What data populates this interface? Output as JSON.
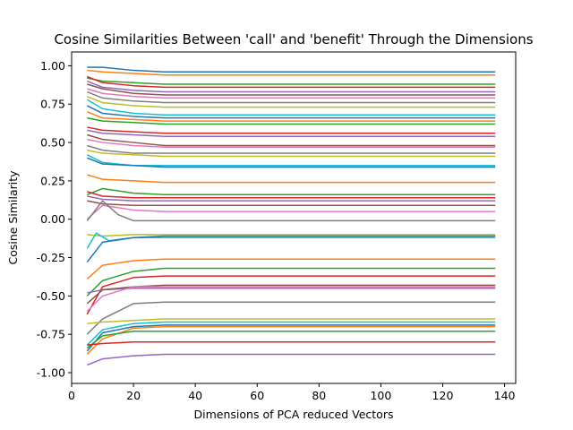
{
  "chart_data": {
    "type": "line",
    "title": "Cosine Similarities Between 'call' and 'benefit' Through the Dimensions",
    "xlabel": "Dimensions of PCA reduced Vectors",
    "ylabel": "Cosine Similarity",
    "xlim": [
      0,
      143.6
    ],
    "ylim": [
      -1.07,
      1.09
    ],
    "xticks": [
      0,
      20,
      40,
      60,
      80,
      100,
      120,
      140
    ],
    "yticks": [
      -1.0,
      -0.75,
      -0.5,
      -0.25,
      0.0,
      0.25,
      0.5,
      0.75,
      1.0
    ],
    "ytick_labels": [
      "-1.00",
      "-0.75",
      "-0.50",
      "-0.25",
      "0.00",
      "0.25",
      "0.50",
      "0.75",
      "1.00"
    ],
    "grid": false,
    "x_start": 5,
    "x_end": 137,
    "palette": [
      "#1f77b4",
      "#ff7f0e",
      "#2ca02c",
      "#d62728",
      "#9467bd",
      "#8c564b",
      "#e377c2",
      "#7f7f7f",
      "#bcbd22",
      "#17becf"
    ],
    "series": [
      {
        "values": [
          [
            5,
            0.99
          ],
          [
            10,
            0.99
          ],
          [
            20,
            0.97
          ],
          [
            30,
            0.96
          ],
          [
            137,
            0.96
          ]
        ]
      },
      {
        "values": [
          [
            5,
            0.97
          ],
          [
            10,
            0.96
          ],
          [
            20,
            0.95
          ],
          [
            30,
            0.94
          ],
          [
            137,
            0.94
          ]
        ]
      },
      {
        "values": [
          [
            5,
            0.92
          ],
          [
            10,
            0.9
          ],
          [
            20,
            0.89
          ],
          [
            30,
            0.88
          ],
          [
            137,
            0.88
          ]
        ]
      },
      {
        "values": [
          [
            5,
            0.93
          ],
          [
            10,
            0.89
          ],
          [
            20,
            0.87
          ],
          [
            30,
            0.86
          ],
          [
            137,
            0.86
          ]
        ]
      },
      {
        "values": [
          [
            5,
            0.9
          ],
          [
            10,
            0.86
          ],
          [
            20,
            0.84
          ],
          [
            30,
            0.83
          ],
          [
            137,
            0.83
          ]
        ]
      },
      {
        "values": [
          [
            5,
            0.88
          ],
          [
            10,
            0.85
          ],
          [
            20,
            0.82
          ],
          [
            30,
            0.81
          ],
          [
            137,
            0.81
          ]
        ]
      },
      {
        "values": [
          [
            5,
            0.85
          ],
          [
            10,
            0.82
          ],
          [
            20,
            0.8
          ],
          [
            30,
            0.79
          ],
          [
            137,
            0.79
          ]
        ]
      },
      {
        "values": [
          [
            5,
            0.83
          ],
          [
            10,
            0.79
          ],
          [
            20,
            0.77
          ],
          [
            30,
            0.76
          ],
          [
            137,
            0.76
          ]
        ]
      },
      {
        "values": [
          [
            5,
            0.8
          ],
          [
            10,
            0.76
          ],
          [
            20,
            0.74
          ],
          [
            30,
            0.73
          ],
          [
            137,
            0.73
          ]
        ]
      },
      {
        "values": [
          [
            5,
            0.78
          ],
          [
            10,
            0.72
          ],
          [
            20,
            0.69
          ],
          [
            30,
            0.68
          ],
          [
            137,
            0.68
          ]
        ]
      },
      {
        "values": [
          [
            5,
            0.74
          ],
          [
            10,
            0.69
          ],
          [
            20,
            0.67
          ],
          [
            30,
            0.66
          ],
          [
            137,
            0.66
          ]
        ]
      },
      {
        "values": [
          [
            5,
            0.7
          ],
          [
            10,
            0.66
          ],
          [
            20,
            0.65
          ],
          [
            30,
            0.64
          ],
          [
            137,
            0.64
          ]
        ]
      },
      {
        "values": [
          [
            5,
            0.66
          ],
          [
            10,
            0.64
          ],
          [
            20,
            0.63
          ],
          [
            30,
            0.62
          ],
          [
            137,
            0.62
          ]
        ]
      },
      {
        "values": [
          [
            5,
            0.6
          ],
          [
            10,
            0.58
          ],
          [
            20,
            0.57
          ],
          [
            30,
            0.56
          ],
          [
            137,
            0.56
          ]
        ]
      },
      {
        "values": [
          [
            5,
            0.58
          ],
          [
            10,
            0.56
          ],
          [
            20,
            0.55
          ],
          [
            30,
            0.54
          ],
          [
            137,
            0.54
          ]
        ]
      },
      {
        "values": [
          [
            5,
            0.55
          ],
          [
            10,
            0.52
          ],
          [
            20,
            0.5
          ],
          [
            30,
            0.48
          ],
          [
            137,
            0.48
          ]
        ]
      },
      {
        "values": [
          [
            5,
            0.52
          ],
          [
            10,
            0.5
          ],
          [
            20,
            0.48
          ],
          [
            30,
            0.47
          ],
          [
            137,
            0.47
          ]
        ]
      },
      {
        "values": [
          [
            5,
            0.48
          ],
          [
            10,
            0.45
          ],
          [
            20,
            0.43
          ],
          [
            30,
            0.43
          ],
          [
            137,
            0.43
          ]
        ]
      },
      {
        "values": [
          [
            5,
            0.45
          ],
          [
            10,
            0.43
          ],
          [
            20,
            0.42
          ],
          [
            30,
            0.41
          ],
          [
            137,
            0.41
          ]
        ]
      },
      {
        "values": [
          [
            5,
            0.42
          ],
          [
            10,
            0.37
          ],
          [
            20,
            0.35
          ],
          [
            30,
            0.35
          ],
          [
            137,
            0.35
          ]
        ]
      },
      {
        "values": [
          [
            5,
            0.4
          ],
          [
            10,
            0.36
          ],
          [
            20,
            0.35
          ],
          [
            30,
            0.34
          ],
          [
            137,
            0.34
          ]
        ]
      },
      {
        "values": [
          [
            5,
            0.29
          ],
          [
            10,
            0.26
          ],
          [
            20,
            0.25
          ],
          [
            30,
            0.24
          ],
          [
            137,
            0.24
          ]
        ]
      },
      {
        "values": [
          [
            5,
            0.16
          ],
          [
            10,
            0.2
          ],
          [
            20,
            0.17
          ],
          [
            30,
            0.16
          ],
          [
            137,
            0.16
          ]
        ]
      },
      {
        "values": [
          [
            5,
            0.18
          ],
          [
            10,
            0.15
          ],
          [
            20,
            0.14
          ],
          [
            30,
            0.14
          ],
          [
            137,
            0.14
          ]
        ]
      },
      {
        "values": [
          [
            5,
            0.15
          ],
          [
            10,
            0.13
          ],
          [
            20,
            0.12
          ],
          [
            30,
            0.12
          ],
          [
            137,
            0.12
          ]
        ]
      },
      {
        "values": [
          [
            5,
            0.12
          ],
          [
            10,
            0.1
          ],
          [
            20,
            0.09
          ],
          [
            30,
            0.09
          ],
          [
            137,
            0.09
          ]
        ]
      },
      {
        "values": [
          [
            5,
            0.0
          ],
          [
            10,
            0.09
          ],
          [
            20,
            0.06
          ],
          [
            30,
            0.05
          ],
          [
            137,
            0.05
          ]
        ]
      },
      {
        "values": [
          [
            5,
            -0.01
          ],
          [
            10,
            0.12
          ],
          [
            15,
            0.03
          ],
          [
            20,
            -0.01
          ],
          [
            30,
            -0.01
          ],
          [
            137,
            -0.01
          ]
        ]
      },
      {
        "values": [
          [
            5,
            -0.1
          ],
          [
            10,
            -0.11
          ],
          [
            20,
            -0.1
          ],
          [
            30,
            -0.1
          ],
          [
            137,
            -0.1
          ]
        ]
      },
      {
        "values": [
          [
            5,
            -0.19
          ],
          [
            8,
            -0.09
          ],
          [
            12,
            -0.14
          ],
          [
            20,
            -0.12
          ],
          [
            137,
            -0.12
          ]
        ]
      },
      {
        "values": [
          [
            5,
            -0.28
          ],
          [
            10,
            -0.15
          ],
          [
            20,
            -0.12
          ],
          [
            30,
            -0.11
          ],
          [
            137,
            -0.11
          ]
        ]
      },
      {
        "values": [
          [
            5,
            -0.39
          ],
          [
            10,
            -0.3
          ],
          [
            20,
            -0.27
          ],
          [
            30,
            -0.26
          ],
          [
            137,
            -0.26
          ]
        ]
      },
      {
        "values": [
          [
            5,
            -0.5
          ],
          [
            10,
            -0.4
          ],
          [
            20,
            -0.34
          ],
          [
            30,
            -0.32
          ],
          [
            137,
            -0.32
          ]
        ]
      },
      {
        "values": [
          [
            5,
            -0.62
          ],
          [
            10,
            -0.44
          ],
          [
            20,
            -0.38
          ],
          [
            30,
            -0.37
          ],
          [
            137,
            -0.37
          ]
        ]
      },
      {
        "values": [
          [
            5,
            -0.48
          ],
          [
            10,
            -0.46
          ],
          [
            20,
            -0.45
          ],
          [
            30,
            -0.45
          ],
          [
            137,
            -0.45
          ]
        ]
      },
      {
        "values": [
          [
            5,
            -0.55
          ],
          [
            10,
            -0.46
          ],
          [
            20,
            -0.44
          ],
          [
            30,
            -0.43
          ],
          [
            137,
            -0.43
          ]
        ]
      },
      {
        "values": [
          [
            5,
            -0.6
          ],
          [
            10,
            -0.5
          ],
          [
            20,
            -0.44
          ],
          [
            30,
            -0.44
          ],
          [
            137,
            -0.44
          ]
        ]
      },
      {
        "values": [
          [
            5,
            -0.75
          ],
          [
            10,
            -0.65
          ],
          [
            20,
            -0.55
          ],
          [
            30,
            -0.54
          ],
          [
            137,
            -0.54
          ]
        ]
      },
      {
        "values": [
          [
            5,
            -0.68
          ],
          [
            10,
            -0.67
          ],
          [
            20,
            -0.66
          ],
          [
            30,
            -0.65
          ],
          [
            137,
            -0.65
          ]
        ]
      },
      {
        "values": [
          [
            5,
            -0.82
          ],
          [
            10,
            -0.72
          ],
          [
            20,
            -0.68
          ],
          [
            30,
            -0.67
          ],
          [
            137,
            -0.67
          ]
        ]
      },
      {
        "values": [
          [
            5,
            -0.86
          ],
          [
            10,
            -0.74
          ],
          [
            20,
            -0.7
          ],
          [
            30,
            -0.69
          ],
          [
            137,
            -0.69
          ]
        ]
      },
      {
        "values": [
          [
            5,
            -0.88
          ],
          [
            10,
            -0.78
          ],
          [
            20,
            -0.71
          ],
          [
            30,
            -0.7
          ],
          [
            137,
            -0.7
          ]
        ]
      },
      {
        "values": [
          [
            5,
            -0.84
          ],
          [
            10,
            -0.76
          ],
          [
            20,
            -0.73
          ],
          [
            30,
            -0.73
          ],
          [
            137,
            -0.73
          ]
        ]
      },
      {
        "values": [
          [
            5,
            -0.82
          ],
          [
            10,
            -0.81
          ],
          [
            20,
            -0.8
          ],
          [
            30,
            -0.8
          ],
          [
            137,
            -0.8
          ]
        ]
      },
      {
        "values": [
          [
            5,
            -0.95
          ],
          [
            10,
            -0.91
          ],
          [
            20,
            -0.89
          ],
          [
            30,
            -0.88
          ],
          [
            137,
            -0.88
          ]
        ]
      }
    ]
  }
}
